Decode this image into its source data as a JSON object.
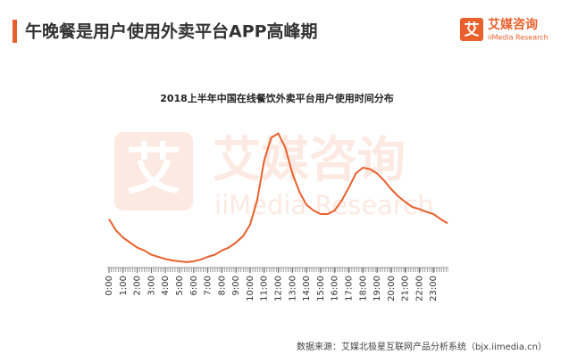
{
  "header": {
    "title": "午晚餐是用户使用外卖平台APP高峰期",
    "logo": {
      "mark": "艾",
      "name": "艾媒咨询",
      "sub": "iiMedia Research"
    }
  },
  "watermark": {
    "mark": "艾",
    "name": "艾媒咨询",
    "sub": "iiMedia Research"
  },
  "chart_data": {
    "type": "line",
    "title": "2018上半年中国在线餐饮外卖平台用户使用时间分布",
    "color": "#e8602c",
    "x": [
      0,
      0.5,
      1,
      1.5,
      2,
      2.5,
      3,
      3.5,
      4,
      4.5,
      5,
      5.5,
      6,
      6.5,
      7,
      7.5,
      8,
      8.5,
      9,
      9.5,
      10,
      10.5,
      11,
      11.5,
      12,
      12.5,
      13,
      13.5,
      14,
      14.5,
      15,
      15.5,
      16,
      16.5,
      17,
      17.5,
      18,
      18.5,
      19,
      19.5,
      20,
      20.5,
      21,
      21.5,
      22,
      22.5,
      23,
      23.5,
      24
    ],
    "values": [
      34,
      26,
      21,
      17.5,
      14,
      12,
      9,
      7.5,
      6,
      5,
      4.4,
      3.8,
      4.4,
      5.6,
      7.5,
      9,
      12,
      14,
      17.5,
      22,
      30,
      47,
      75,
      91,
      94,
      84,
      66,
      53,
      44,
      40,
      37.5,
      37.5,
      40,
      47,
      56,
      66,
      70,
      69,
      66,
      61,
      55,
      50,
      46,
      42.5,
      41,
      39,
      37.5,
      34,
      31
    ],
    "xlim": [
      0,
      24
    ],
    "ylim": [
      0,
      100
    ],
    "xticks": [
      {
        "value": 0,
        "label": "0:00"
      },
      {
        "value": 1,
        "label": "1:00"
      },
      {
        "value": 2,
        "label": "2:00"
      },
      {
        "value": 3,
        "label": "3:00"
      },
      {
        "value": 4,
        "label": "4:00"
      },
      {
        "value": 5,
        "label": "5:00"
      },
      {
        "value": 6,
        "label": "6:00"
      },
      {
        "value": 7,
        "label": "7:00"
      },
      {
        "value": 8,
        "label": "8:00"
      },
      {
        "value": 9,
        "label": "9:00"
      },
      {
        "value": 10,
        "label": "10:00"
      },
      {
        "value": 11,
        "label": "11:00"
      },
      {
        "value": 12,
        "label": "12:00"
      },
      {
        "value": 13,
        "label": "13:00"
      },
      {
        "value": 14,
        "label": "14:00"
      },
      {
        "value": 15,
        "label": "15:00"
      },
      {
        "value": 16,
        "label": "16:00"
      },
      {
        "value": 17,
        "label": "17:00"
      },
      {
        "value": 18,
        "label": "18:00"
      },
      {
        "value": 19,
        "label": "19:00"
      },
      {
        "value": 20,
        "label": "20:00"
      },
      {
        "value": 21,
        "label": "21:00"
      },
      {
        "value": 22,
        "label": "22:00"
      },
      {
        "value": 23,
        "label": "23:00"
      }
    ],
    "source": "数据来源：艾媒北极星互联网产品分析系统（bjx.iimedia.cn）"
  }
}
